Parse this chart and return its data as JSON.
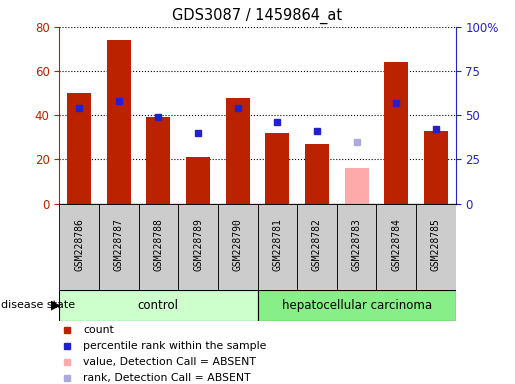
{
  "title": "GDS3087 / 1459864_at",
  "samples": [
    "GSM228786",
    "GSM228787",
    "GSM228788",
    "GSM228789",
    "GSM228790",
    "GSM228781",
    "GSM228782",
    "GSM228783",
    "GSM228784",
    "GSM228785"
  ],
  "count_values": [
    50,
    74,
    39,
    21,
    48,
    32,
    27,
    null,
    64,
    33
  ],
  "count_absent": [
    null,
    null,
    null,
    null,
    null,
    null,
    null,
    16,
    null,
    null
  ],
  "rank_values": [
    54,
    58,
    49,
    40,
    54,
    46,
    41,
    null,
    57,
    42
  ],
  "rank_absent": [
    null,
    null,
    null,
    null,
    null,
    null,
    null,
    35,
    null,
    null
  ],
  "left_ylim": [
    0,
    80
  ],
  "right_ylim": [
    0,
    100
  ],
  "left_yticks": [
    0,
    20,
    40,
    60,
    80
  ],
  "right_yticks": [
    0,
    25,
    50,
    75,
    100
  ],
  "right_yticklabels": [
    "0",
    "25",
    "50",
    "75",
    "100%"
  ],
  "bar_color": "#bb2200",
  "bar_absent_color": "#ffaaaa",
  "rank_color": "#2222cc",
  "rank_absent_color": "#aaaadd",
  "control_bg": "#ccffcc",
  "cancer_bg": "#88ee88",
  "sample_bg": "#cccccc",
  "n_control": 5,
  "n_cancer": 5,
  "legend_items": [
    {
      "color": "#bb2200",
      "label": "count"
    },
    {
      "color": "#2222cc",
      "label": "percentile rank within the sample"
    },
    {
      "color": "#ffaaaa",
      "label": "value, Detection Call = ABSENT"
    },
    {
      "color": "#aaaadd",
      "label": "rank, Detection Call = ABSENT"
    }
  ]
}
